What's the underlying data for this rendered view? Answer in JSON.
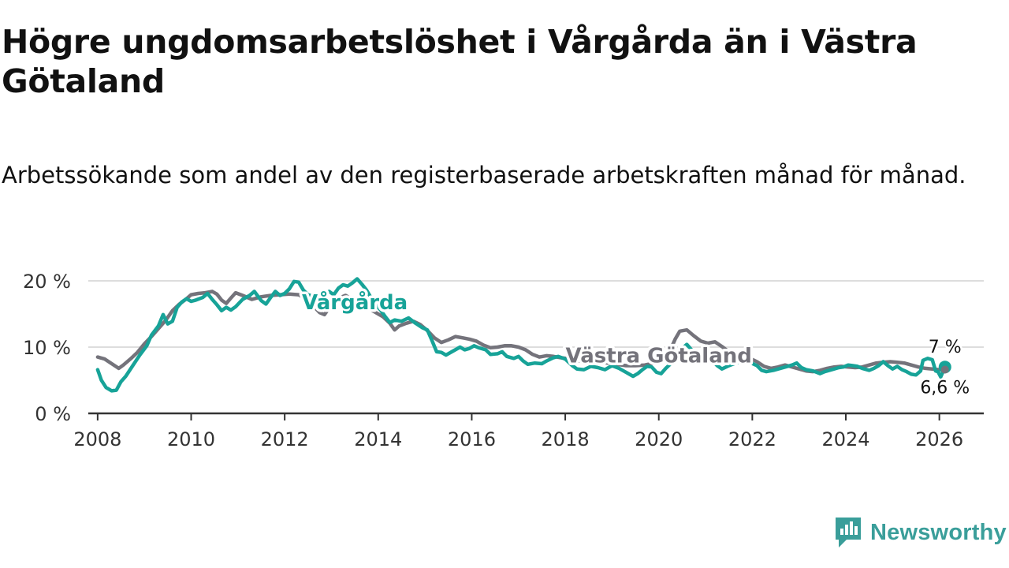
{
  "title": "Högre ungdomsarbetslöshet i Vårgårda än i Västra Götaland",
  "subtitle": "Arbetssökande som andel av den registerbaserade arbetskraften månad för månad.",
  "brand": "Newsworthy",
  "colors": {
    "vargarda": "#17a398",
    "vastra_gotaland": "#74737b",
    "brand": "#3a9e9a",
    "grid": "#dddddd",
    "axis": "#333333"
  },
  "chart_data": {
    "type": "line",
    "title": "Högre ungdomsarbetslöshet i Vårgårda än i Västra Götaland",
    "xlabel": "",
    "ylabel": "",
    "xlim": [
      2007.8,
      2026.95
    ],
    "ylim": [
      0,
      20
    ],
    "grid": true,
    "legend": "inline labels",
    "x_ticks": [
      2008,
      2010,
      2012,
      2014,
      2016,
      2018,
      2020,
      2022,
      2024,
      2026
    ],
    "x_tick_labels": [
      "2008",
      "2010",
      "2012",
      "2014",
      "2016",
      "2018",
      "2020",
      "2022",
      "2024",
      "2026"
    ],
    "y_ticks": [
      0,
      10,
      20
    ],
    "y_tick_labels": [
      "0 %",
      "10 %",
      "20 %"
    ],
    "series": [
      {
        "name": "Västra Götaland",
        "label": "Västra Götaland",
        "end_label": "6,6 %",
        "points": [
          [
            2008.0,
            8.5
          ],
          [
            2008.15,
            8.2
          ],
          [
            2008.3,
            7.5
          ],
          [
            2008.45,
            6.8
          ],
          [
            2008.55,
            7.3
          ],
          [
            2008.7,
            8.2
          ],
          [
            2008.85,
            9.2
          ],
          [
            2009.0,
            10.5
          ],
          [
            2009.15,
            11.6
          ],
          [
            2009.3,
            12.8
          ],
          [
            2009.45,
            14.0
          ],
          [
            2009.6,
            15.5
          ],
          [
            2009.75,
            16.5
          ],
          [
            2009.9,
            17.3
          ],
          [
            2010.0,
            17.9
          ],
          [
            2010.15,
            18.1
          ],
          [
            2010.3,
            18.2
          ],
          [
            2010.45,
            18.4
          ],
          [
            2010.55,
            18.0
          ],
          [
            2010.65,
            17.1
          ],
          [
            2010.75,
            16.6
          ],
          [
            2010.85,
            17.4
          ],
          [
            2010.95,
            18.2
          ],
          [
            2011.1,
            17.8
          ],
          [
            2011.3,
            17.2
          ],
          [
            2011.5,
            17.6
          ],
          [
            2011.7,
            17.8
          ],
          [
            2011.9,
            17.9
          ],
          [
            2012.1,
            18.0
          ],
          [
            2012.3,
            17.9
          ],
          [
            2012.45,
            17.3
          ],
          [
            2012.6,
            16.3
          ],
          [
            2012.75,
            15.2
          ],
          [
            2012.85,
            14.9
          ],
          [
            2012.95,
            15.9
          ],
          [
            2013.1,
            17.2
          ],
          [
            2013.3,
            17.8
          ],
          [
            2013.5,
            17.0
          ],
          [
            2013.7,
            16.1
          ],
          [
            2013.9,
            15.4
          ],
          [
            2014.1,
            14.6
          ],
          [
            2014.25,
            13.6
          ],
          [
            2014.35,
            12.6
          ],
          [
            2014.45,
            13.2
          ],
          [
            2014.6,
            13.6
          ],
          [
            2014.75,
            13.9
          ],
          [
            2014.9,
            13.4
          ],
          [
            2015.05,
            12.5
          ],
          [
            2015.2,
            11.4
          ],
          [
            2015.35,
            10.7
          ],
          [
            2015.5,
            11.1
          ],
          [
            2015.65,
            11.6
          ],
          [
            2015.8,
            11.4
          ],
          [
            2015.95,
            11.2
          ],
          [
            2016.1,
            10.9
          ],
          [
            2016.25,
            10.3
          ],
          [
            2016.4,
            9.9
          ],
          [
            2016.55,
            10.0
          ],
          [
            2016.7,
            10.2
          ],
          [
            2016.85,
            10.2
          ],
          [
            2017.0,
            10.0
          ],
          [
            2017.15,
            9.6
          ],
          [
            2017.3,
            8.9
          ],
          [
            2017.45,
            8.5
          ],
          [
            2017.6,
            8.7
          ],
          [
            2017.75,
            8.6
          ],
          [
            2017.9,
            8.4
          ],
          [
            2018.1,
            8.2
          ],
          [
            2018.3,
            7.9
          ],
          [
            2018.5,
            7.7
          ],
          [
            2018.7,
            7.8
          ],
          [
            2018.9,
            7.6
          ],
          [
            2019.1,
            7.4
          ],
          [
            2019.3,
            7.2
          ],
          [
            2019.5,
            7.2
          ],
          [
            2019.7,
            7.3
          ],
          [
            2019.9,
            7.6
          ],
          [
            2020.1,
            8.4
          ],
          [
            2020.25,
            9.6
          ],
          [
            2020.35,
            11.2
          ],
          [
            2020.45,
            12.4
          ],
          [
            2020.6,
            12.6
          ],
          [
            2020.75,
            11.7
          ],
          [
            2020.9,
            10.9
          ],
          [
            2021.05,
            10.6
          ],
          [
            2021.2,
            10.8
          ],
          [
            2021.35,
            10.1
          ],
          [
            2021.5,
            9.3
          ],
          [
            2021.65,
            9.0
          ],
          [
            2021.8,
            8.6
          ],
          [
            2021.95,
            8.3
          ],
          [
            2022.1,
            7.8
          ],
          [
            2022.25,
            7.1
          ],
          [
            2022.4,
            6.8
          ],
          [
            2022.55,
            7.0
          ],
          [
            2022.7,
            7.3
          ],
          [
            2022.85,
            7.0
          ],
          [
            2023.0,
            6.7
          ],
          [
            2023.15,
            6.4
          ],
          [
            2023.3,
            6.3
          ],
          [
            2023.45,
            6.5
          ],
          [
            2023.6,
            6.8
          ],
          [
            2023.75,
            7.0
          ],
          [
            2023.9,
            7.1
          ],
          [
            2024.05,
            7.0
          ],
          [
            2024.2,
            6.9
          ],
          [
            2024.35,
            7.0
          ],
          [
            2024.5,
            7.3
          ],
          [
            2024.65,
            7.6
          ],
          [
            2024.8,
            7.7
          ],
          [
            2024.95,
            7.8
          ],
          [
            2025.1,
            7.7
          ],
          [
            2025.25,
            7.6
          ],
          [
            2025.4,
            7.3
          ],
          [
            2025.55,
            7.0
          ],
          [
            2025.7,
            6.8
          ],
          [
            2025.85,
            6.7
          ],
          [
            2026.0,
            6.6
          ],
          [
            2026.12,
            6.6
          ]
        ]
      },
      {
        "name": "Vårgårda",
        "label": "Vårgårda",
        "end_label": "7 %",
        "points": [
          [
            2008.0,
            6.6
          ],
          [
            2008.08,
            5.0
          ],
          [
            2008.18,
            3.9
          ],
          [
            2008.3,
            3.4
          ],
          [
            2008.4,
            3.5
          ],
          [
            2008.5,
            4.8
          ],
          [
            2008.6,
            5.6
          ],
          [
            2008.75,
            7.2
          ],
          [
            2008.9,
            8.8
          ],
          [
            2009.05,
            10.2
          ],
          [
            2009.15,
            11.8
          ],
          [
            2009.3,
            13.2
          ],
          [
            2009.4,
            14.9
          ],
          [
            2009.5,
            13.5
          ],
          [
            2009.6,
            13.9
          ],
          [
            2009.7,
            16.0
          ],
          [
            2009.8,
            16.8
          ],
          [
            2009.9,
            17.3
          ],
          [
            2010.0,
            16.9
          ],
          [
            2010.1,
            17.1
          ],
          [
            2010.25,
            17.5
          ],
          [
            2010.35,
            18.1
          ],
          [
            2010.45,
            17.2
          ],
          [
            2010.55,
            16.4
          ],
          [
            2010.65,
            15.5
          ],
          [
            2010.75,
            16.0
          ],
          [
            2010.85,
            15.6
          ],
          [
            2010.95,
            16.1
          ],
          [
            2011.1,
            17.2
          ],
          [
            2011.25,
            17.8
          ],
          [
            2011.35,
            18.4
          ],
          [
            2011.5,
            17.0
          ],
          [
            2011.6,
            16.5
          ],
          [
            2011.7,
            17.5
          ],
          [
            2011.8,
            18.4
          ],
          [
            2011.9,
            17.8
          ],
          [
            2012.0,
            18.1
          ],
          [
            2012.1,
            18.8
          ],
          [
            2012.2,
            19.9
          ],
          [
            2012.3,
            19.8
          ],
          [
            2012.4,
            18.6
          ],
          [
            2012.5,
            17.9
          ],
          [
            2012.65,
            17.6
          ],
          [
            2012.8,
            17.8
          ],
          [
            2012.95,
            18.4
          ],
          [
            2013.05,
            17.9
          ],
          [
            2013.15,
            18.9
          ],
          [
            2013.25,
            19.4
          ],
          [
            2013.35,
            19.2
          ],
          [
            2013.45,
            19.7
          ],
          [
            2013.55,
            20.3
          ],
          [
            2013.65,
            19.5
          ],
          [
            2013.75,
            18.6
          ],
          [
            2013.85,
            17.4
          ],
          [
            2013.95,
            16.4
          ],
          [
            2014.05,
            15.6
          ],
          [
            2014.15,
            14.6
          ],
          [
            2014.25,
            13.7
          ],
          [
            2014.35,
            14.1
          ],
          [
            2014.5,
            13.9
          ],
          [
            2014.65,
            14.4
          ],
          [
            2014.8,
            13.6
          ],
          [
            2014.95,
            12.9
          ],
          [
            2015.05,
            12.6
          ],
          [
            2015.15,
            11.0
          ],
          [
            2015.25,
            9.3
          ],
          [
            2015.35,
            9.2
          ],
          [
            2015.45,
            8.8
          ],
          [
            2015.6,
            9.4
          ],
          [
            2015.75,
            10.0
          ],
          [
            2015.85,
            9.6
          ],
          [
            2015.95,
            9.8
          ],
          [
            2016.05,
            10.2
          ],
          [
            2016.15,
            9.9
          ],
          [
            2016.3,
            9.6
          ],
          [
            2016.4,
            8.9
          ],
          [
            2016.55,
            9.0
          ],
          [
            2016.65,
            9.3
          ],
          [
            2016.75,
            8.6
          ],
          [
            2016.9,
            8.3
          ],
          [
            2017.0,
            8.6
          ],
          [
            2017.1,
            7.9
          ],
          [
            2017.2,
            7.4
          ],
          [
            2017.35,
            7.6
          ],
          [
            2017.5,
            7.5
          ],
          [
            2017.6,
            7.9
          ],
          [
            2017.75,
            8.4
          ],
          [
            2017.85,
            8.6
          ],
          [
            2018.0,
            8.2
          ],
          [
            2018.15,
            7.2
          ],
          [
            2018.25,
            6.7
          ],
          [
            2018.4,
            6.6
          ],
          [
            2018.55,
            7.1
          ],
          [
            2018.7,
            6.9
          ],
          [
            2018.85,
            6.6
          ],
          [
            2019.0,
            7.2
          ],
          [
            2019.15,
            6.8
          ],
          [
            2019.3,
            6.2
          ],
          [
            2019.45,
            5.6
          ],
          [
            2019.55,
            6.0
          ],
          [
            2019.65,
            6.6
          ],
          [
            2019.75,
            7.1
          ],
          [
            2019.85,
            7.0
          ],
          [
            2019.95,
            6.2
          ],
          [
            2020.05,
            6.0
          ],
          [
            2020.15,
            6.8
          ],
          [
            2020.3,
            7.8
          ],
          [
            2020.4,
            8.6
          ],
          [
            2020.5,
            9.8
          ],
          [
            2020.6,
            10.4
          ],
          [
            2020.7,
            9.6
          ],
          [
            2020.85,
            8.9
          ],
          [
            2021.0,
            8.3
          ],
          [
            2021.15,
            7.9
          ],
          [
            2021.25,
            7.2
          ],
          [
            2021.35,
            6.7
          ],
          [
            2021.5,
            7.2
          ],
          [
            2021.65,
            7.6
          ],
          [
            2021.8,
            7.9
          ],
          [
            2021.95,
            7.7
          ],
          [
            2022.1,
            7.2
          ],
          [
            2022.2,
            6.5
          ],
          [
            2022.3,
            6.3
          ],
          [
            2022.45,
            6.5
          ],
          [
            2022.6,
            6.8
          ],
          [
            2022.75,
            7.1
          ],
          [
            2022.85,
            7.3
          ],
          [
            2022.95,
            7.6
          ],
          [
            2023.05,
            6.9
          ],
          [
            2023.15,
            6.6
          ],
          [
            2023.3,
            6.4
          ],
          [
            2023.45,
            6.0
          ],
          [
            2023.55,
            6.3
          ],
          [
            2023.7,
            6.6
          ],
          [
            2023.85,
            6.9
          ],
          [
            2023.95,
            7.0
          ],
          [
            2024.05,
            7.3
          ],
          [
            2024.15,
            7.2
          ],
          [
            2024.25,
            7.1
          ],
          [
            2024.35,
            6.8
          ],
          [
            2024.5,
            6.5
          ],
          [
            2024.6,
            6.8
          ],
          [
            2024.7,
            7.2
          ],
          [
            2024.8,
            7.8
          ],
          [
            2024.9,
            7.2
          ],
          [
            2025.0,
            6.7
          ],
          [
            2025.1,
            7.1
          ],
          [
            2025.2,
            6.6
          ],
          [
            2025.3,
            6.3
          ],
          [
            2025.4,
            5.9
          ],
          [
            2025.5,
            5.8
          ],
          [
            2025.6,
            6.4
          ],
          [
            2025.65,
            8.0
          ],
          [
            2025.75,
            8.3
          ],
          [
            2025.85,
            8.1
          ],
          [
            2025.92,
            6.4
          ],
          [
            2025.97,
            6.3
          ],
          [
            2026.03,
            5.5
          ],
          [
            2026.12,
            7.0
          ]
        ]
      }
    ]
  }
}
